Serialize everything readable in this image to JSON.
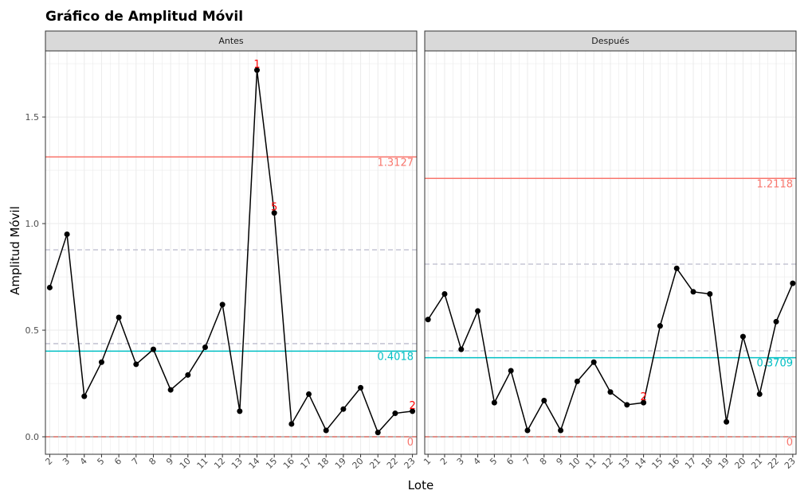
{
  "chart_data": {
    "type": "line",
    "title": "Gráfico de Amplitud Móvil",
    "xlabel": "Lote",
    "ylabel": "Amplitud Móvil",
    "ylim": [
      -0.082,
      1.81
    ],
    "yticks": [
      "0.0",
      "0.5",
      "1.0",
      "1.5"
    ],
    "ytick_values": [
      0,
      0.5,
      1.0,
      1.5
    ],
    "grid": true,
    "colors": {
      "line": "#000000",
      "ucl": "#F8766D",
      "center": "#00BFC4",
      "sigma": "#BBBBCC",
      "violation": "#FF0000"
    },
    "panels": [
      {
        "name": "Antes",
        "x": [
          2,
          3,
          4,
          5,
          6,
          7,
          8,
          9,
          10,
          11,
          12,
          13,
          14,
          15,
          16,
          17,
          18,
          19,
          20,
          21,
          22,
          23
        ],
        "xtick_labels": [
          "2",
          "3",
          "4",
          "5",
          "6",
          "7",
          "8",
          "9",
          "10",
          "11",
          "12",
          "13",
          "14",
          "15",
          "16",
          "17",
          "18",
          "19",
          "20",
          "21",
          "22",
          "23"
        ],
        "xlim": [
          1.75,
          23.25
        ],
        "values": [
          0.7,
          0.95,
          0.19,
          0.35,
          0.56,
          0.34,
          0.41,
          0.22,
          0.29,
          0.42,
          0.62,
          0.12,
          1.72,
          1.05,
          0.06,
          0.2,
          0.03,
          0.13,
          0.23,
          0.02,
          0.11,
          0.12
        ],
        "ucl": 1.3127,
        "ucl_label": "1.3127",
        "center": 0.4018,
        "center_label": "0.4018",
        "lcl": 0,
        "lcl_label": "0",
        "sigma_lines": [
          0.877,
          0.437
        ],
        "violations": [
          {
            "x": 14,
            "label": "1"
          },
          {
            "x": 15,
            "label": "5"
          },
          {
            "x": 23,
            "label": "2"
          }
        ]
      },
      {
        "name": "Después",
        "x": [
          1,
          2,
          3,
          4,
          5,
          6,
          7,
          8,
          9,
          10,
          11,
          12,
          13,
          14,
          15,
          16,
          17,
          18,
          19,
          20,
          21,
          22,
          23
        ],
        "xtick_labels": [
          "1",
          "2",
          "3",
          "4",
          "5",
          "6",
          "7",
          "8",
          "9",
          "10",
          "11",
          "12",
          "13",
          "14",
          "15",
          "16",
          "17",
          "18",
          "19",
          "20",
          "21",
          "22",
          "23"
        ],
        "xlim": [
          0.8,
          23.2
        ],
        "values": [
          0.55,
          0.67,
          0.41,
          0.59,
          0.16,
          0.31,
          0.03,
          0.17,
          0.03,
          0.26,
          0.35,
          0.21,
          0.15,
          0.16,
          0.52,
          0.79,
          0.68,
          0.67,
          0.07,
          0.47,
          0.2,
          0.54,
          0.72
        ],
        "ucl": 1.2118,
        "ucl_label": "1.2118",
        "center": 0.3709,
        "center_label": "0.3709",
        "lcl": 0,
        "lcl_label": "0",
        "sigma_lines": [
          0.81,
          0.403
        ],
        "violations": [
          {
            "x": 14,
            "label": "2"
          }
        ]
      }
    ]
  }
}
